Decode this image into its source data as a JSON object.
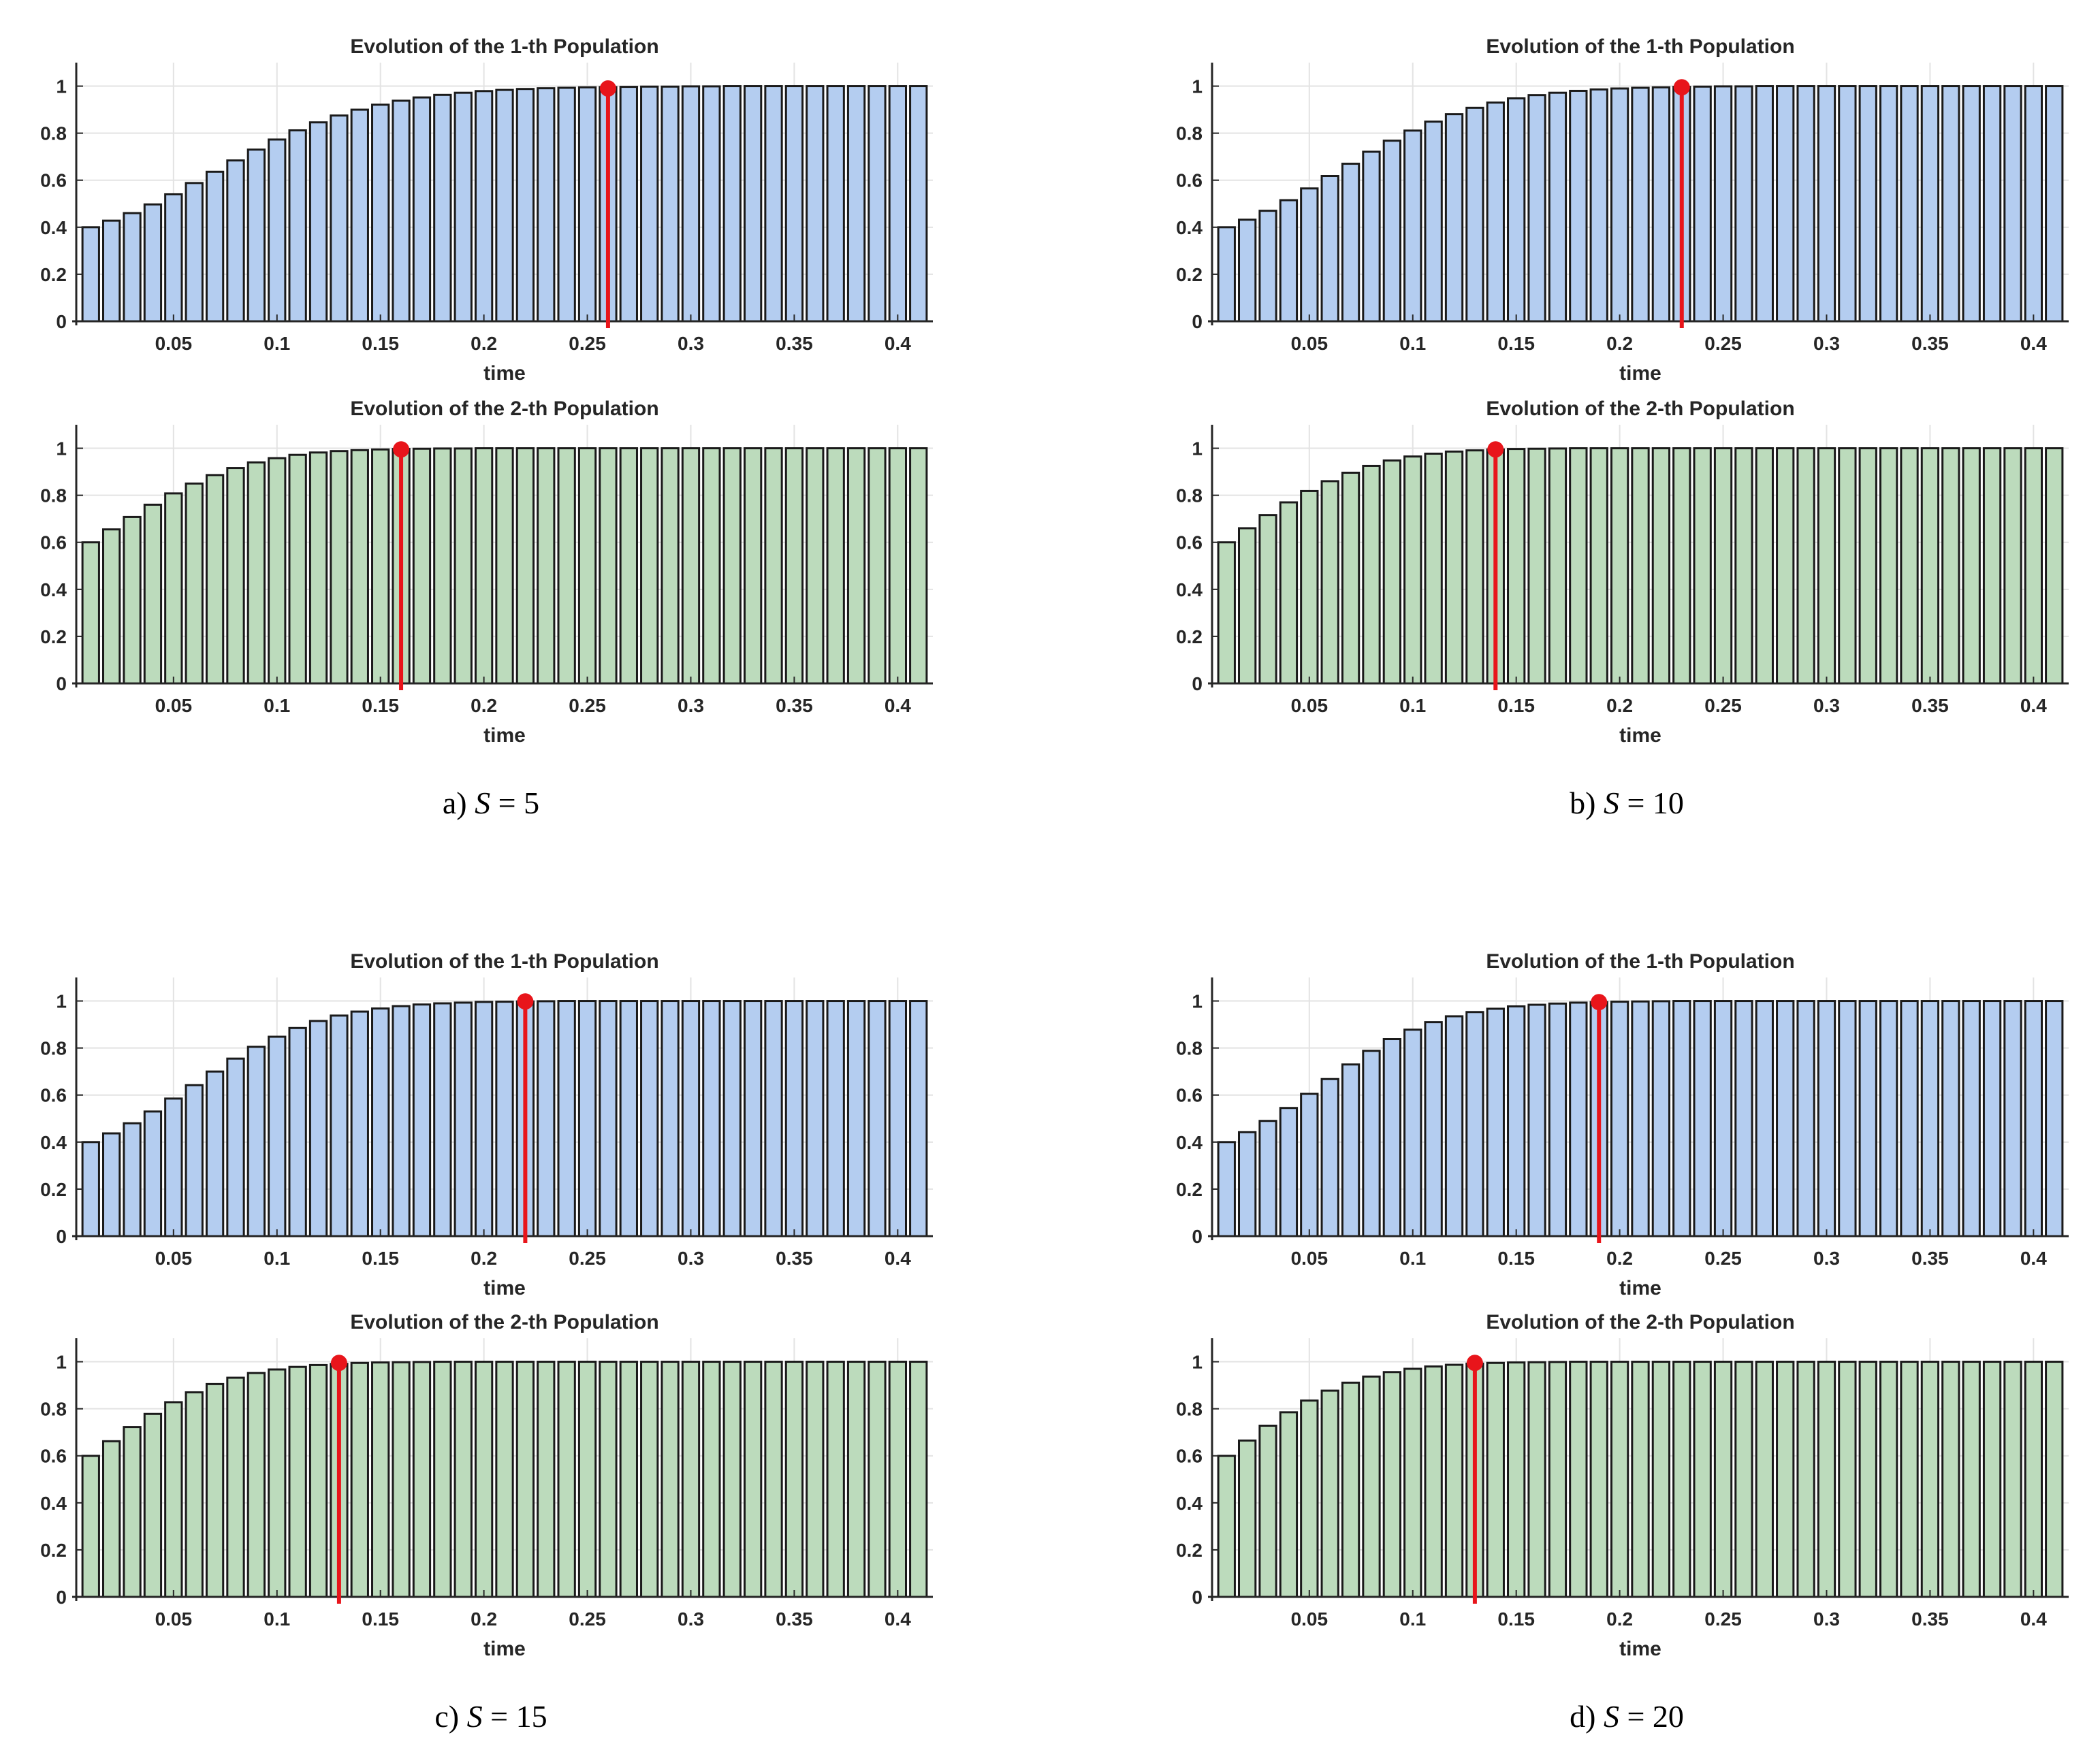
{
  "colors": {
    "population_1_bar": "#b4cdf0",
    "population_2_bar": "#bcdbbc",
    "bar_edge": "#1a1a1a",
    "marker": "#e8151b",
    "grid": "#e3e3e3",
    "axis": "#262626"
  },
  "chart_data": [
    {
      "type": "bar",
      "panel": "a",
      "caption_prefix": "a)",
      "caption_symbol": "S",
      "caption_value": "= 5",
      "series": [
        {
          "name": "Evolution of the 1-th Population",
          "title": "Evolution of the 1-th Population",
          "xlabel": "time",
          "color": "#b4cdf0",
          "x_start": 0.01,
          "x_step": 0.01,
          "count": 41,
          "values": [
            0.4,
            0.428,
            0.46,
            0.497,
            0.54,
            0.588,
            0.636,
            0.684,
            0.73,
            0.773,
            0.812,
            0.846,
            0.875,
            0.9,
            0.921,
            0.938,
            0.952,
            0.963,
            0.972,
            0.979,
            0.984,
            0.988,
            0.991,
            0.993,
            0.995,
            0.996,
            0.997,
            0.998,
            0.998,
            0.999,
            0.999,
            1,
            1,
            1,
            1,
            1,
            1,
            1,
            1,
            1,
            1
          ],
          "xlim": [
            0.003,
            0.417
          ],
          "ylim": [
            0,
            1.1
          ],
          "xticks": [
            0.05,
            0.1,
            0.15,
            0.2,
            0.25,
            0.3,
            0.35,
            0.4
          ],
          "xtick_labels": [
            "0.05",
            "0.1",
            "0.15",
            "0.2",
            "0.25",
            "0.3",
            "0.35",
            "0.4"
          ],
          "yticks": [
            0,
            0.2,
            0.4,
            0.6,
            0.8,
            1
          ],
          "ytick_labels": [
            "0",
            "0.2",
            "0.4",
            "0.6",
            "0.8",
            "1"
          ],
          "marker_x": 0.26,
          "marker_y": 0.99,
          "grid": true
        },
        {
          "name": "Evolution of the 2-th Population",
          "title": "Evolution of the 2-th Population",
          "xlabel": "time",
          "color": "#bcdbbc",
          "x_start": 0.01,
          "x_step": 0.01,
          "count": 41,
          "values": [
            0.6,
            0.655,
            0.708,
            0.76,
            0.808,
            0.85,
            0.886,
            0.916,
            0.94,
            0.958,
            0.972,
            0.982,
            0.988,
            0.992,
            0.995,
            0.997,
            0.998,
            0.999,
            0.999,
            1,
            1,
            1,
            1,
            1,
            1,
            1,
            1,
            1,
            1,
            1,
            1,
            1,
            1,
            1,
            1,
            1,
            1,
            1,
            1,
            1,
            1
          ],
          "xlim": [
            0.003,
            0.417
          ],
          "ylim": [
            0,
            1.1
          ],
          "xticks": [
            0.05,
            0.1,
            0.15,
            0.2,
            0.25,
            0.3,
            0.35,
            0.4
          ],
          "xtick_labels": [
            "0.05",
            "0.1",
            "0.15",
            "0.2",
            "0.25",
            "0.3",
            "0.35",
            "0.4"
          ],
          "yticks": [
            0,
            0.2,
            0.4,
            0.6,
            0.8,
            1
          ],
          "ytick_labels": [
            "0",
            "0.2",
            "0.4",
            "0.6",
            "0.8",
            "1"
          ],
          "marker_x": 0.16,
          "marker_y": 0.995,
          "grid": true
        }
      ]
    },
    {
      "type": "bar",
      "panel": "b",
      "caption_prefix": "b)",
      "caption_symbol": "S",
      "caption_value": "= 10",
      "series": [
        {
          "name": "Evolution of the 1-th Population",
          "title": "Evolution of the 1-th Population",
          "xlabel": "time",
          "color": "#b4cdf0",
          "x_start": 0.01,
          "x_step": 0.01,
          "count": 41,
          "values": [
            0.4,
            0.432,
            0.47,
            0.515,
            0.565,
            0.618,
            0.67,
            0.721,
            0.768,
            0.811,
            0.849,
            0.881,
            0.908,
            0.93,
            0.948,
            0.962,
            0.972,
            0.98,
            0.986,
            0.99,
            0.993,
            0.995,
            0.997,
            0.998,
            0.999,
            0.999,
            1,
            1,
            1,
            1,
            1,
            1,
            1,
            1,
            1,
            1,
            1,
            1,
            1,
            1,
            1
          ],
          "xlim": [
            0.003,
            0.417
          ],
          "ylim": [
            0,
            1.1
          ],
          "xticks": [
            0.05,
            0.1,
            0.15,
            0.2,
            0.25,
            0.3,
            0.35,
            0.4
          ],
          "xtick_labels": [
            "0.05",
            "0.1",
            "0.15",
            "0.2",
            "0.25",
            "0.3",
            "0.35",
            "0.4"
          ],
          "yticks": [
            0,
            0.2,
            0.4,
            0.6,
            0.8,
            1
          ],
          "ytick_labels": [
            "0",
            "0.2",
            "0.4",
            "0.6",
            "0.8",
            "1"
          ],
          "marker_x": 0.23,
          "marker_y": 0.995,
          "grid": true
        },
        {
          "name": "Evolution of the 2-th Population",
          "title": "Evolution of the 2-th Population",
          "xlabel": "time",
          "color": "#bcdbbc",
          "x_start": 0.01,
          "x_step": 0.01,
          "count": 41,
          "values": [
            0.6,
            0.66,
            0.716,
            0.77,
            0.818,
            0.86,
            0.896,
            0.925,
            0.948,
            0.965,
            0.977,
            0.986,
            0.991,
            0.995,
            0.997,
            0.998,
            0.999,
            1,
            1,
            1,
            1,
            1,
            1,
            1,
            1,
            1,
            1,
            1,
            1,
            1,
            1,
            1,
            1,
            1,
            1,
            1,
            1,
            1,
            1,
            1,
            1
          ],
          "xlim": [
            0.003,
            0.417
          ],
          "ylim": [
            0,
            1.1
          ],
          "xticks": [
            0.05,
            0.1,
            0.15,
            0.2,
            0.25,
            0.3,
            0.35,
            0.4
          ],
          "xtick_labels": [
            "0.05",
            "0.1",
            "0.15",
            "0.2",
            "0.25",
            "0.3",
            "0.35",
            "0.4"
          ],
          "yticks": [
            0,
            0.2,
            0.4,
            0.6,
            0.8,
            1
          ],
          "ytick_labels": [
            "0",
            "0.2",
            "0.4",
            "0.6",
            "0.8",
            "1"
          ],
          "marker_x": 0.14,
          "marker_y": 0.995,
          "grid": true
        }
      ]
    },
    {
      "type": "bar",
      "panel": "c",
      "caption_prefix": "c)",
      "caption_symbol": "S",
      "caption_value": "= 15",
      "series": [
        {
          "name": "Evolution of the 1-th Population",
          "title": "Evolution of the 1-th Population",
          "xlabel": "time",
          "color": "#b4cdf0",
          "x_start": 0.01,
          "x_step": 0.01,
          "count": 41,
          "values": [
            0.4,
            0.437,
            0.48,
            0.53,
            0.585,
            0.642,
            0.7,
            0.755,
            0.805,
            0.848,
            0.885,
            0.915,
            0.938,
            0.955,
            0.968,
            0.978,
            0.985,
            0.99,
            0.993,
            0.996,
            0.997,
            0.998,
            0.999,
            1,
            1,
            1,
            1,
            1,
            1,
            1,
            1,
            1,
            1,
            1,
            1,
            1,
            1,
            1,
            1,
            1,
            1
          ],
          "xlim": [
            0.003,
            0.417
          ],
          "ylim": [
            0,
            1.1
          ],
          "xticks": [
            0.05,
            0.1,
            0.15,
            0.2,
            0.25,
            0.3,
            0.35,
            0.4
          ],
          "xtick_labels": [
            "0.05",
            "0.1",
            "0.15",
            "0.2",
            "0.25",
            "0.3",
            "0.35",
            "0.4"
          ],
          "yticks": [
            0,
            0.2,
            0.4,
            0.6,
            0.8,
            1
          ],
          "ytick_labels": [
            "0",
            "0.2",
            "0.4",
            "0.6",
            "0.8",
            "1"
          ],
          "marker_x": 0.22,
          "marker_y": 0.998,
          "grid": true
        },
        {
          "name": "Evolution of the 2-th Population",
          "title": "Evolution of the 2-th Population",
          "xlabel": "time",
          "color": "#bcdbbc",
          "x_start": 0.01,
          "x_step": 0.01,
          "count": 41,
          "values": [
            0.6,
            0.662,
            0.722,
            0.778,
            0.828,
            0.87,
            0.905,
            0.932,
            0.952,
            0.967,
            0.978,
            0.986,
            0.991,
            0.995,
            0.997,
            0.998,
            0.999,
            1,
            1,
            1,
            1,
            1,
            1,
            1,
            1,
            1,
            1,
            1,
            1,
            1,
            1,
            1,
            1,
            1,
            1,
            1,
            1,
            1,
            1,
            1,
            1
          ],
          "xlim": [
            0.003,
            0.417
          ],
          "ylim": [
            0,
            1.1
          ],
          "xticks": [
            0.05,
            0.1,
            0.15,
            0.2,
            0.25,
            0.3,
            0.35,
            0.4
          ],
          "xtick_labels": [
            "0.05",
            "0.1",
            "0.15",
            "0.2",
            "0.25",
            "0.3",
            "0.35",
            "0.4"
          ],
          "yticks": [
            0,
            0.2,
            0.4,
            0.6,
            0.8,
            1
          ],
          "ytick_labels": [
            "0",
            "0.2",
            "0.4",
            "0.6",
            "0.8",
            "1"
          ],
          "marker_x": 0.13,
          "marker_y": 0.995,
          "grid": true
        }
      ]
    },
    {
      "type": "bar",
      "panel": "d",
      "caption_prefix": "d)",
      "caption_symbol": "S",
      "caption_value": "= 20",
      "series": [
        {
          "name": "Evolution of the 1-th Population",
          "title": "Evolution of the 1-th Population",
          "xlabel": "time",
          "color": "#b4cdf0",
          "x_start": 0.01,
          "x_step": 0.01,
          "count": 41,
          "values": [
            0.4,
            0.442,
            0.49,
            0.545,
            0.605,
            0.668,
            0.73,
            0.788,
            0.838,
            0.878,
            0.91,
            0.935,
            0.953,
            0.967,
            0.977,
            0.984,
            0.989,
            0.993,
            0.995,
            0.997,
            0.998,
            0.999,
            1,
            1,
            1,
            1,
            1,
            1,
            1,
            1,
            1,
            1,
            1,
            1,
            1,
            1,
            1,
            1,
            1,
            1,
            1
          ],
          "xlim": [
            0.003,
            0.417
          ],
          "ylim": [
            0,
            1.1
          ],
          "xticks": [
            0.05,
            0.1,
            0.15,
            0.2,
            0.25,
            0.3,
            0.35,
            0.4
          ],
          "xtick_labels": [
            "0.05",
            "0.1",
            "0.15",
            "0.2",
            "0.25",
            "0.3",
            "0.35",
            "0.4"
          ],
          "yticks": [
            0,
            0.2,
            0.4,
            0.6,
            0.8,
            1
          ],
          "ytick_labels": [
            "0",
            "0.2",
            "0.4",
            "0.6",
            "0.8",
            "1"
          ],
          "marker_x": 0.19,
          "marker_y": 0.995,
          "grid": true
        },
        {
          "name": "Evolution of the 2-th Population",
          "title": "Evolution of the 2-th Population",
          "xlabel": "time",
          "color": "#bcdbbc",
          "x_start": 0.01,
          "x_step": 0.01,
          "count": 41,
          "values": [
            0.6,
            0.665,
            0.728,
            0.785,
            0.835,
            0.877,
            0.911,
            0.937,
            0.956,
            0.97,
            0.98,
            0.987,
            0.992,
            0.995,
            0.997,
            0.998,
            0.999,
            1,
            1,
            1,
            1,
            1,
            1,
            1,
            1,
            1,
            1,
            1,
            1,
            1,
            1,
            1,
            1,
            1,
            1,
            1,
            1,
            1,
            1,
            1,
            1
          ],
          "xlim": [
            0.003,
            0.417
          ],
          "ylim": [
            0,
            1.1
          ],
          "xticks": [
            0.05,
            0.1,
            0.15,
            0.2,
            0.25,
            0.3,
            0.35,
            0.4
          ],
          "xtick_labels": [
            "0.05",
            "0.1",
            "0.15",
            "0.2",
            "0.25",
            "0.3",
            "0.35",
            "0.4"
          ],
          "yticks": [
            0,
            0.2,
            0.4,
            0.6,
            0.8,
            1
          ],
          "ytick_labels": [
            "0",
            "0.2",
            "0.4",
            "0.6",
            "0.8",
            "1"
          ],
          "marker_x": 0.13,
          "marker_y": 0.995,
          "grid": true
        }
      ]
    }
  ]
}
